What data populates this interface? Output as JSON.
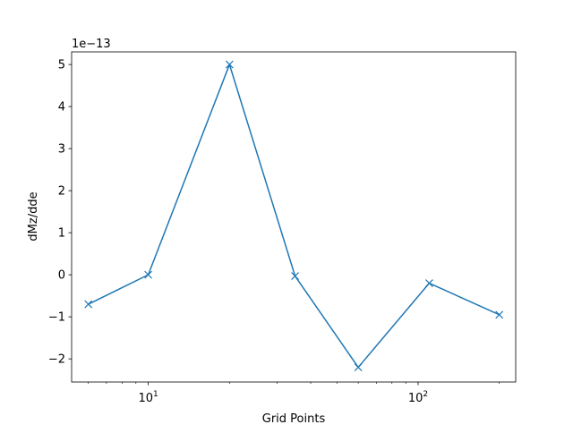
{
  "chart_data": {
    "type": "line",
    "title": "",
    "xlabel": "Grid Points",
    "ylabel": "dMz/dde",
    "x_scale": "log",
    "xlim": [
      5.2,
      230
    ],
    "ylim": [
      -2.55,
      5.3
    ],
    "offset_text": "1e−13",
    "x_ticks": [
      {
        "value": 10,
        "base": "10",
        "exp": "1"
      },
      {
        "value": 100,
        "base": "10",
        "exp": "2"
      }
    ],
    "y_ticks": [
      {
        "value": -2,
        "label": "−2"
      },
      {
        "value": -1,
        "label": "−1"
      },
      {
        "value": 0,
        "label": "0"
      },
      {
        "value": 1,
        "label": "1"
      },
      {
        "value": 2,
        "label": "2"
      },
      {
        "value": 3,
        "label": "3"
      },
      {
        "value": 4,
        "label": "4"
      },
      {
        "value": 5,
        "label": "5"
      }
    ],
    "grid": false,
    "marker": "x",
    "series": [
      {
        "color": "#1f77b4",
        "x": [
          6,
          10,
          20,
          35,
          60,
          110,
          200
        ],
        "y": [
          -0.7,
          0.0,
          5.0,
          -0.03,
          -2.2,
          -0.2,
          -0.95
        ]
      }
    ]
  }
}
